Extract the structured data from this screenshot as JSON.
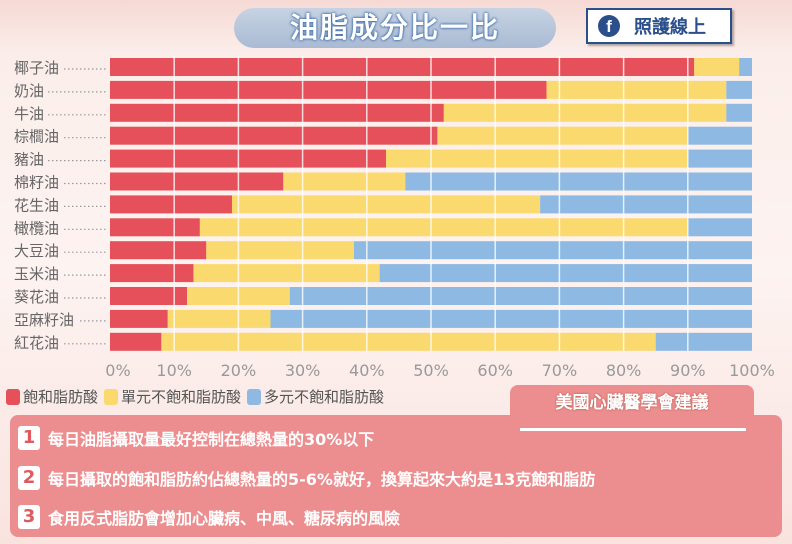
{
  "header": {
    "title": "油脂成分比一比",
    "brand_label": "照護線上",
    "brand_icon": "facebook-icon"
  },
  "chart_data": {
    "type": "bar",
    "orientation": "horizontal-stacked-100",
    "categories": [
      "椰子油",
      "奶油",
      "牛油",
      "棕櫚油",
      "豬油",
      "棉籽油",
      "花生油",
      "橄欖油",
      "大豆油",
      "玉米油",
      "葵花油",
      "亞麻籽油",
      "紅花油"
    ],
    "series": [
      {
        "name": "飽和脂肪酸",
        "color": "#e5505a",
        "values": [
          91,
          68,
          52,
          51,
          43,
          27,
          19,
          14,
          15,
          13,
          12,
          9,
          8
        ]
      },
      {
        "name": "單元不飽和脂肪酸",
        "color": "#fad96e",
        "values": [
          7,
          28,
          44,
          39,
          47,
          19,
          48,
          76,
          23,
          29,
          16,
          16,
          77
        ]
      },
      {
        "name": "多元不飽和脂肪酸",
        "color": "#8db9e2",
        "values": [
          2,
          4,
          4,
          10,
          10,
          54,
          33,
          10,
          62,
          58,
          72,
          75,
          15
        ]
      }
    ],
    "xticks": [
      "0%",
      "10%",
      "20%",
      "30%",
      "40%",
      "50%",
      "60%",
      "70%",
      "80%",
      "90%",
      "100%"
    ],
    "xlim": [
      0,
      100
    ],
    "grid": true,
    "legend": "bottom-left"
  },
  "recommendations": {
    "title": "美國心臟醫學會建議",
    "items": [
      {
        "num": "1",
        "text": "每日油脂攝取量最好控制在總熱量的30%以下"
      },
      {
        "num": "2",
        "text": "每日攝取的飽和脂肪約佔總熱量的5-6%就好，換算起來大約是13克飽和脂肪"
      },
      {
        "num": "3",
        "text": "食用反式脂肪會增加心臟病、中風、糖尿病的風險"
      }
    ]
  }
}
